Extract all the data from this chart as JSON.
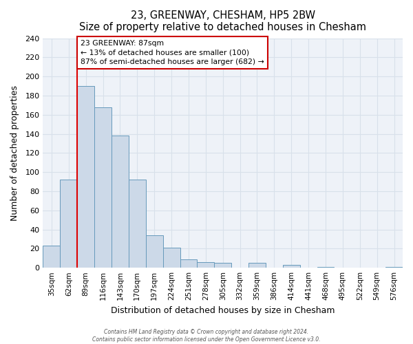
{
  "title": "23, GREENWAY, CHESHAM, HP5 2BW",
  "subtitle": "Size of property relative to detached houses in Chesham",
  "xlabel": "Distribution of detached houses by size in Chesham",
  "ylabel": "Number of detached properties",
  "bar_labels": [
    "35sqm",
    "62sqm",
    "89sqm",
    "116sqm",
    "143sqm",
    "170sqm",
    "197sqm",
    "224sqm",
    "251sqm",
    "278sqm",
    "305sqm",
    "332sqm",
    "359sqm",
    "386sqm",
    "414sqm",
    "441sqm",
    "468sqm",
    "495sqm",
    "522sqm",
    "549sqm",
    "576sqm"
  ],
  "bar_values": [
    23,
    92,
    190,
    168,
    138,
    92,
    34,
    21,
    9,
    6,
    5,
    0,
    5,
    0,
    3,
    0,
    1,
    0,
    0,
    0,
    1
  ],
  "bar_color": "#ccd9e8",
  "bar_edge_color": "#6699bb",
  "vline_index": 1.5,
  "vline_color": "#dd0000",
  "annotation_text": "23 GREENWAY: 87sqm\n← 13% of detached houses are smaller (100)\n87% of semi-detached houses are larger (682) →",
  "annotation_box_edgecolor": "#cc0000",
  "ylim": [
    0,
    240
  ],
  "yticks": [
    0,
    20,
    40,
    60,
    80,
    100,
    120,
    140,
    160,
    180,
    200,
    220,
    240
  ],
  "grid_color": "#d8e0ea",
  "bg_color": "#eef2f8",
  "footer1": "Contains HM Land Registry data © Crown copyright and database right 2024.",
  "footer2": "Contains public sector information licensed under the Open Government Licence v3.0."
}
